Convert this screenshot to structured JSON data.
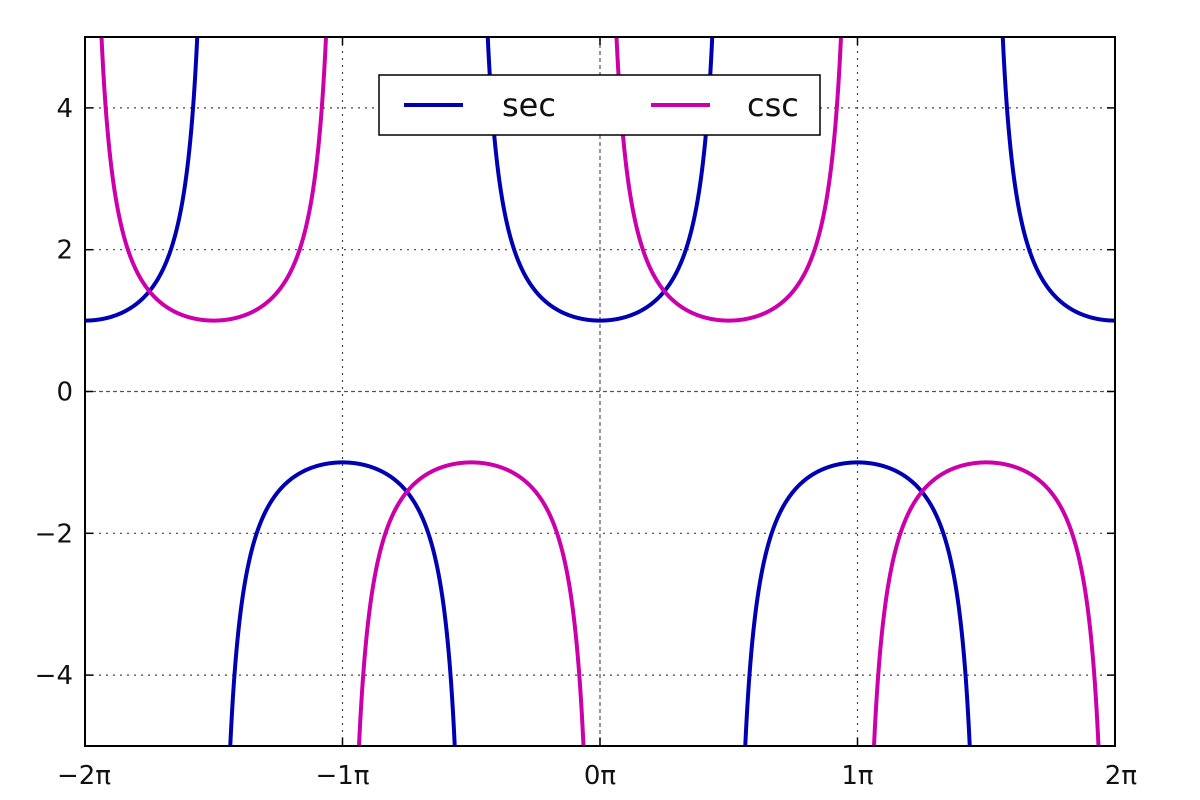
{
  "chart_data": {
    "type": "line",
    "title": "",
    "xlabel": "",
    "ylabel": "",
    "xlim": [
      -6.283185307179586,
      6.283185307179586
    ],
    "ylim": [
      -5,
      5
    ],
    "grid": true,
    "grid_style": "dotted",
    "legend_position": "top-center",
    "x_ticks": [
      {
        "value": -6.283185307179586,
        "label": "−2π"
      },
      {
        "value": -3.141592653589793,
        "label": "−1π"
      },
      {
        "value": 0,
        "label": "0π"
      },
      {
        "value": 3.141592653589793,
        "label": "1π"
      },
      {
        "value": 6.283185307179586,
        "label": "2π"
      }
    ],
    "y_ticks": [
      {
        "value": -4,
        "label": "−4"
      },
      {
        "value": -2,
        "label": "−2"
      },
      {
        "value": 0,
        "label": "0"
      },
      {
        "value": 2,
        "label": "2"
      },
      {
        "value": 4,
        "label": "4"
      }
    ],
    "series": [
      {
        "name": "sec",
        "color": "#0000b3",
        "function": "sec",
        "points": [
          {
            "x": -6.283185307179586,
            "y": 1
          },
          {
            "x": -3.141592653589793,
            "y": -1
          },
          {
            "x": 0,
            "y": 1
          },
          {
            "x": 3.141592653589793,
            "y": -1
          },
          {
            "x": 6.283185307179586,
            "y": 1
          }
        ],
        "asymptotes": [
          -4.71238898038469,
          -1.5707963267948966,
          1.5707963267948966,
          4.71238898038469
        ]
      },
      {
        "name": "csc",
        "color": "#cc00aa",
        "function": "csc",
        "points": [
          {
            "x": -4.71238898038469,
            "y": 1
          },
          {
            "x": -1.5707963267948966,
            "y": -1
          },
          {
            "x": 1.5707963267948966,
            "y": 1
          },
          {
            "x": 4.71238898038469,
            "y": -1
          }
        ],
        "asymptotes": [
          -6.283185307179586,
          -3.141592653589793,
          0,
          3.141592653589793,
          6.283185307179586
        ]
      }
    ]
  }
}
